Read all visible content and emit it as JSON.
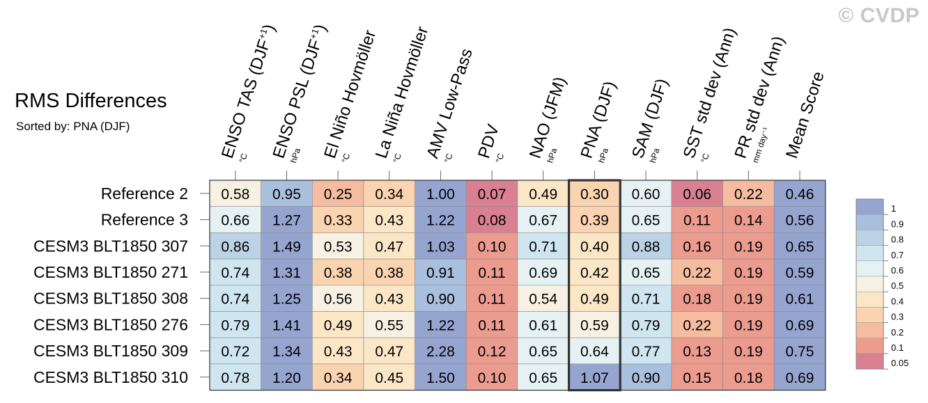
{
  "watermark": "© CVDP",
  "title": "RMS Differences",
  "subtitle": "Sorted by: PNA (DJF)",
  "chart_data": {
    "type": "heatmap",
    "columns": [
      {
        "label": "ENSO TAS (DJF",
        "sup": "+1",
        "close": ")",
        "unit": "°C"
      },
      {
        "label": "ENSO PSL (DJF",
        "sup": "+1",
        "close": ")",
        "unit": "hPa"
      },
      {
        "label": "El Niño Hovmöller",
        "sup": "",
        "close": "",
        "unit": "°C"
      },
      {
        "label": "La Niña Hovmöller",
        "sup": "",
        "close": "",
        "unit": "°C"
      },
      {
        "label": "AMV Low-Pass",
        "sup": "",
        "close": "",
        "unit": "°C"
      },
      {
        "label": "PDV",
        "sup": "",
        "close": "",
        "unit": "°C"
      },
      {
        "label": "NAO (JFM)",
        "sup": "",
        "close": "",
        "unit": "hPa"
      },
      {
        "label": "PNA (DJF)",
        "sup": "",
        "close": "",
        "unit": "hPa"
      },
      {
        "label": "SAM (DJF)",
        "sup": "",
        "close": "",
        "unit": "hPa"
      },
      {
        "label": "SST std dev (Ann)",
        "sup": "",
        "close": "",
        "unit": "°C"
      },
      {
        "label": "PR std dev (Ann)",
        "sup": "",
        "close": "",
        "unit": "mm day⁻¹"
      },
      {
        "label": "Mean Score",
        "sup": "",
        "close": "",
        "unit": ""
      }
    ],
    "rows": [
      "Reference 2",
      "Reference 3",
      "CESM3 BLT1850 307",
      "CESM3 BLT1850 271",
      "CESM3 BLT1850 308",
      "CESM3 BLT1850 276",
      "CESM3 BLT1850 309",
      "CESM3 BLT1850 310"
    ],
    "values": [
      [
        0.58,
        0.95,
        0.25,
        0.34,
        1.0,
        0.07,
        0.49,
        0.3,
        0.6,
        0.06,
        0.22,
        0.46
      ],
      [
        0.66,
        1.27,
        0.33,
        0.43,
        1.22,
        0.08,
        0.67,
        0.39,
        0.65,
        0.11,
        0.14,
        0.56
      ],
      [
        0.86,
        1.49,
        0.53,
        0.47,
        1.03,
        0.1,
        0.71,
        0.4,
        0.88,
        0.16,
        0.19,
        0.65
      ],
      [
        0.74,
        1.31,
        0.38,
        0.38,
        0.91,
        0.11,
        0.69,
        0.42,
        0.65,
        0.22,
        0.19,
        0.59
      ],
      [
        0.74,
        1.25,
        0.56,
        0.43,
        0.9,
        0.11,
        0.54,
        0.49,
        0.71,
        0.18,
        0.19,
        0.61
      ],
      [
        0.79,
        1.41,
        0.49,
        0.55,
        1.22,
        0.11,
        0.61,
        0.59,
        0.79,
        0.22,
        0.19,
        0.69
      ],
      [
        0.72,
        1.34,
        0.43,
        0.47,
        2.28,
        0.12,
        0.65,
        0.64,
        0.77,
        0.13,
        0.19,
        0.75
      ],
      [
        0.78,
        1.2,
        0.34,
        0.45,
        1.5,
        0.1,
        0.65,
        1.07,
        0.9,
        0.15,
        0.18,
        0.69
      ]
    ],
    "highlight_column": "PNA (DJF)",
    "legend": {
      "labels": [
        "1",
        "0.9",
        "0.8",
        "0.7",
        "0.6",
        "0.5",
        "0.4",
        "0.3",
        "0.2",
        "0.1",
        "0.05"
      ],
      "colors": [
        "#95a5d0",
        "#a9bfde",
        "#bcd3e6",
        "#cfe5ef",
        "#e6f1f3",
        "#f6f1e2",
        "#fbe6c6",
        "#fad3b0",
        "#f5bca0",
        "#ec9c8f",
        "#d98092"
      ],
      "placement": "right"
    }
  }
}
